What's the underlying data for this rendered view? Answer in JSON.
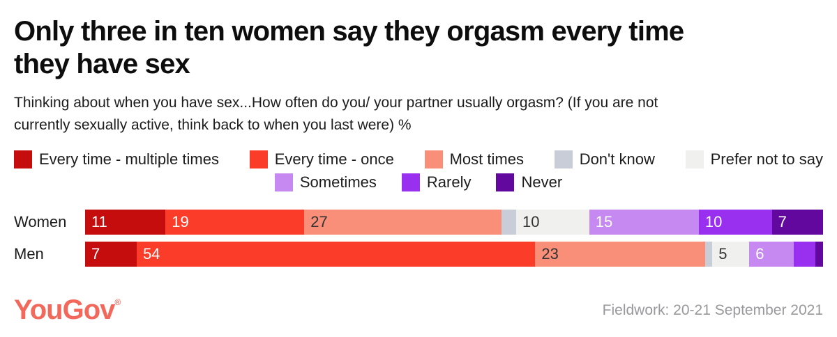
{
  "header": {
    "title_line1": "Only three in ten women say they orgasm every time",
    "title_line2": "they have sex",
    "subtitle_line1": "Thinking about when you have sex...How often do you/ your partner usually orgasm? (If you are not",
    "subtitle_line2": "currently sexually active, think back to when you last were) %"
  },
  "chart_data": {
    "type": "bar",
    "stacked": true,
    "orientation": "horizontal",
    "unit": "%",
    "title": "Only three in ten women say they orgasm every time they have sex",
    "subtitle": "Thinking about when you have sex...How often do you/ your partner usually orgasm? (If you are not currently sexually active, think back to when you last were) %",
    "categories": [
      "Women",
      "Men"
    ],
    "series": [
      {
        "name": "Every time - multiple times",
        "color": "#c60d0d",
        "label_color": "#ffffff",
        "values": [
          11,
          7
        ]
      },
      {
        "name": "Every time - once",
        "color": "#fa3c28",
        "label_color": "#ffffff",
        "values": [
          19,
          54
        ]
      },
      {
        "name": "Most times",
        "color": "#f98e79",
        "label_color": "#333333",
        "values": [
          27,
          23
        ]
      },
      {
        "name": "Don't know",
        "color": "#c9cdd8",
        "label_color": "#333333",
        "values": [
          2,
          1
        ]
      },
      {
        "name": "Prefer not to say",
        "color": "#f0f0ee",
        "label_color": "#333333",
        "values": [
          10,
          5
        ]
      },
      {
        "name": "Sometimes",
        "color": "#c689f2",
        "label_color": "#ffffff",
        "values": [
          15,
          6
        ]
      },
      {
        "name": "Rarely",
        "color": "#9a30ef",
        "label_color": "#ffffff",
        "values": [
          10,
          3
        ]
      },
      {
        "name": "Never",
        "color": "#62089e",
        "label_color": "#ffffff",
        "values": [
          7,
          1
        ]
      }
    ],
    "legend_rows": [
      [
        0,
        1,
        2,
        3,
        4
      ],
      [
        5,
        6,
        7
      ]
    ],
    "min_label_value": 4,
    "legend_position": "top",
    "grid": false
  },
  "footer": {
    "logo": "YouGov",
    "logo_mark": "®",
    "logo_color": "#f2695c",
    "fieldwork": "Fieldwork: 20-21 September 2021"
  }
}
